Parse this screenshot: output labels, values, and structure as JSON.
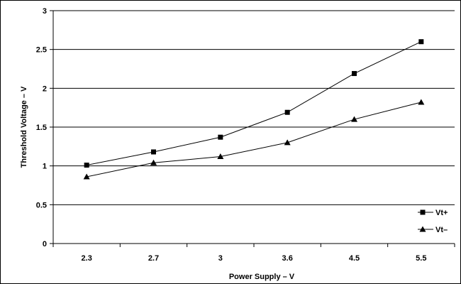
{
  "chart_data": {
    "type": "line",
    "title": "",
    "xlabel": "Power Supply – V",
    "ylabel": "Threshold Voltage – V",
    "categories": [
      "2.3",
      "2.7",
      "3",
      "3.6",
      "4.5",
      "5.5"
    ],
    "ylim": [
      0,
      3
    ],
    "yticks": [
      "0",
      "0.5",
      "1",
      "1.5",
      "2",
      "2.5",
      "3"
    ],
    "grid": "horizontal",
    "legend_position": "bottom-right",
    "series": [
      {
        "name": "Vt+",
        "marker": "square",
        "values": [
          1.01,
          1.18,
          1.37,
          1.69,
          2.19,
          2.6
        ]
      },
      {
        "name": "Vt–",
        "marker": "triangle",
        "values": [
          0.86,
          1.04,
          1.12,
          1.3,
          1.6,
          1.82
        ]
      }
    ]
  }
}
